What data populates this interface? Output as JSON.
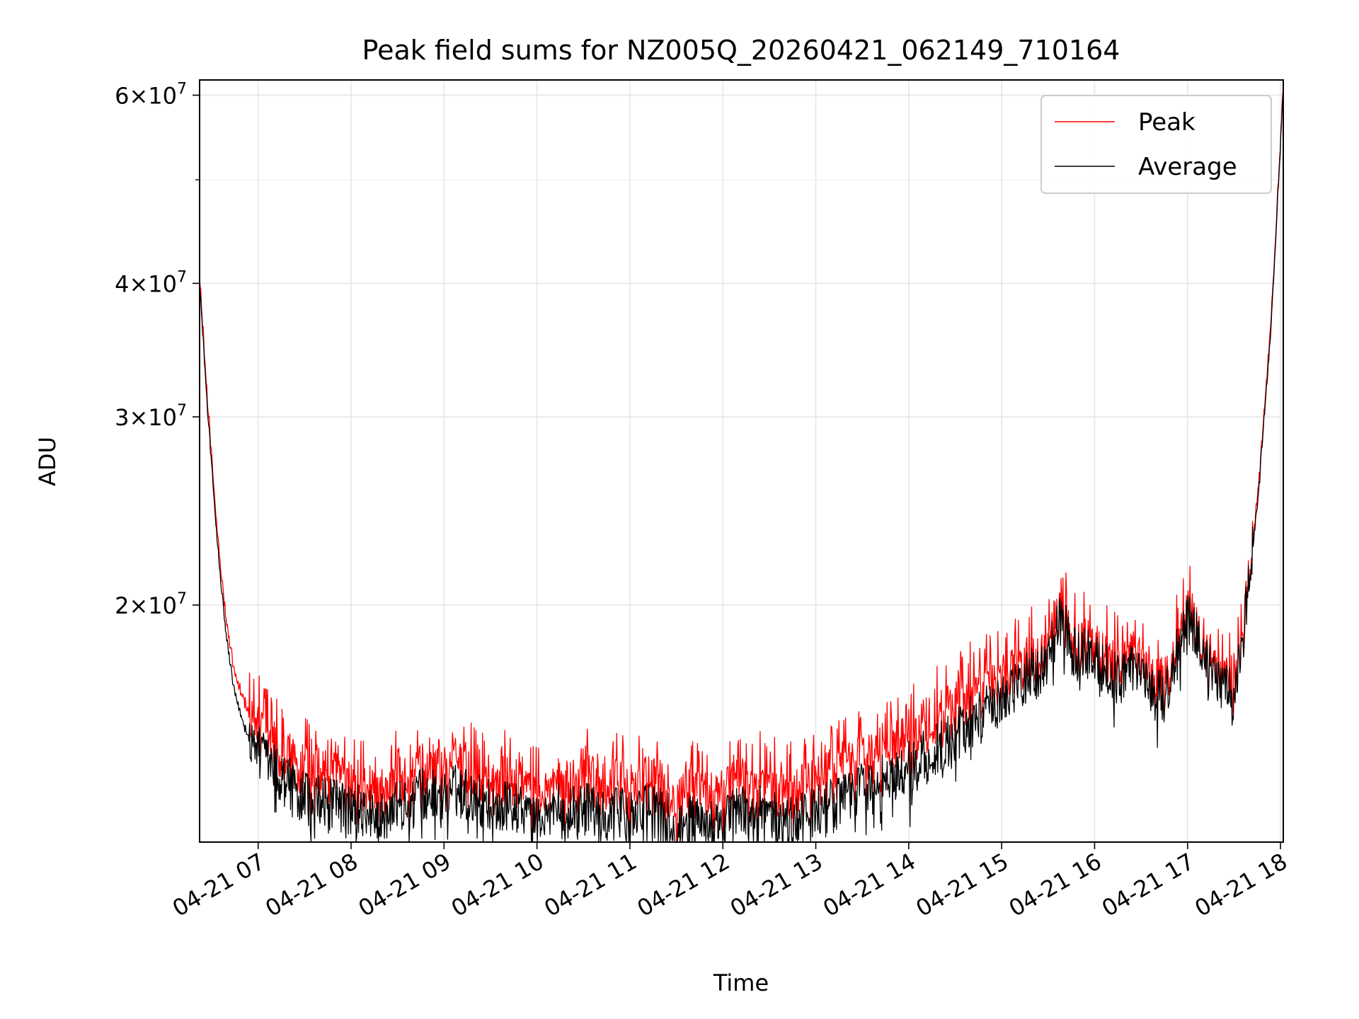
{
  "chart_data": {
    "type": "line",
    "title": "Peak field sums for NZ005Q_20260421_062149_710164",
    "xlabel": "Time",
    "ylabel": "ADU",
    "yscale": "log",
    "xlim": [
      6.37,
      18.03
    ],
    "ylim": [
      12000000,
      62000000
    ],
    "grid": true,
    "legend_position": "top-right",
    "x_tick_labels": [
      "04-21 07",
      "04-21 08",
      "04-21 09",
      "04-21 10",
      "04-21 11",
      "04-21 12",
      "04-21 13",
      "04-21 14",
      "04-21 15",
      "04-21 16",
      "04-21 17",
      "04-21 18"
    ],
    "x_tick_hours": [
      7,
      8,
      9,
      10,
      11,
      12,
      13,
      14,
      15,
      16,
      17,
      18
    ],
    "y_ticks": [
      {
        "value": 20000000,
        "label_mantissa": "2",
        "label_base": "×10",
        "label_exp": "7"
      },
      {
        "value": 30000000,
        "label_mantissa": "3",
        "label_base": "×10",
        "label_exp": "7"
      },
      {
        "value": 40000000,
        "label_mantissa": "4",
        "label_base": "×10",
        "label_exp": "7"
      },
      {
        "value": 60000000,
        "label_mantissa": "6",
        "label_base": "×10",
        "label_exp": "7"
      }
    ],
    "y_minor_ticks": [
      50000000
    ],
    "series": [
      {
        "name": "Peak",
        "color": "#ff0000",
        "x_hours": [
          6.37,
          6.45,
          6.55,
          6.65,
          6.75,
          6.85,
          7.0,
          7.25,
          7.5,
          7.75,
          8.0,
          8.25,
          8.5,
          8.75,
          9.0,
          9.25,
          9.5,
          9.75,
          10.0,
          10.25,
          10.5,
          10.75,
          11.0,
          11.25,
          11.5,
          11.75,
          12.0,
          12.25,
          12.5,
          12.75,
          13.0,
          13.25,
          13.5,
          13.75,
          14.0,
          14.25,
          14.5,
          14.75,
          15.0,
          15.25,
          15.5,
          15.65,
          15.75,
          16.0,
          16.25,
          16.5,
          16.75,
          17.0,
          17.25,
          17.5,
          17.6,
          17.75,
          17.9,
          18.03
        ],
        "values": [
          40500000,
          31500000,
          24000000,
          19500000,
          17200000,
          16200000,
          15400000,
          14500000,
          14000000,
          13800000,
          13600000,
          13400000,
          13600000,
          14000000,
          14300000,
          14100000,
          13700000,
          13600000,
          13500000,
          13600000,
          13700000,
          13500000,
          13600000,
          13700000,
          13400000,
          13300000,
          13400000,
          13700000,
          13500000,
          13300000,
          13600000,
          14100000,
          14400000,
          14800000,
          15100000,
          15600000,
          16100000,
          16700000,
          17100000,
          17700000,
          18300000,
          19700000,
          18500000,
          18200000,
          17600000,
          17900000,
          16700000,
          19700000,
          17600000,
          16800000,
          19000000,
          25000000,
          37000000,
          61500000
        ]
      },
      {
        "name": "Average",
        "color": "#000000",
        "x_hours": [
          6.37,
          6.45,
          6.55,
          6.65,
          6.75,
          6.85,
          7.0,
          7.25,
          7.5,
          7.75,
          8.0,
          8.25,
          8.5,
          8.75,
          9.0,
          9.25,
          9.5,
          9.75,
          10.0,
          10.25,
          10.5,
          10.75,
          11.0,
          11.25,
          11.5,
          11.75,
          12.0,
          12.25,
          12.5,
          12.75,
          13.0,
          13.25,
          13.5,
          13.75,
          14.0,
          14.25,
          14.5,
          14.75,
          15.0,
          15.25,
          15.5,
          15.65,
          15.75,
          16.0,
          16.25,
          16.5,
          16.75,
          17.0,
          17.25,
          17.5,
          17.6,
          17.75,
          17.9,
          18.03
        ],
        "values": [
          40000000,
          31000000,
          23500000,
          18900000,
          16500000,
          15400000,
          14600000,
          13800000,
          13200000,
          13000000,
          12900000,
          12700000,
          12900000,
          13300000,
          13500000,
          13300000,
          13000000,
          12900000,
          12800000,
          12900000,
          12900000,
          12700000,
          12800000,
          12900000,
          12600000,
          12500000,
          12600000,
          12900000,
          12700000,
          12500000,
          12800000,
          13200000,
          13500000,
          13800000,
          14100000,
          14600000,
          15100000,
          15800000,
          16300000,
          17100000,
          17900000,
          19500000,
          18200000,
          17800000,
          17100000,
          17500000,
          16300000,
          19500000,
          17400000,
          16500000,
          18800000,
          24700000,
          36500000,
          61000000
        ]
      }
    ]
  }
}
